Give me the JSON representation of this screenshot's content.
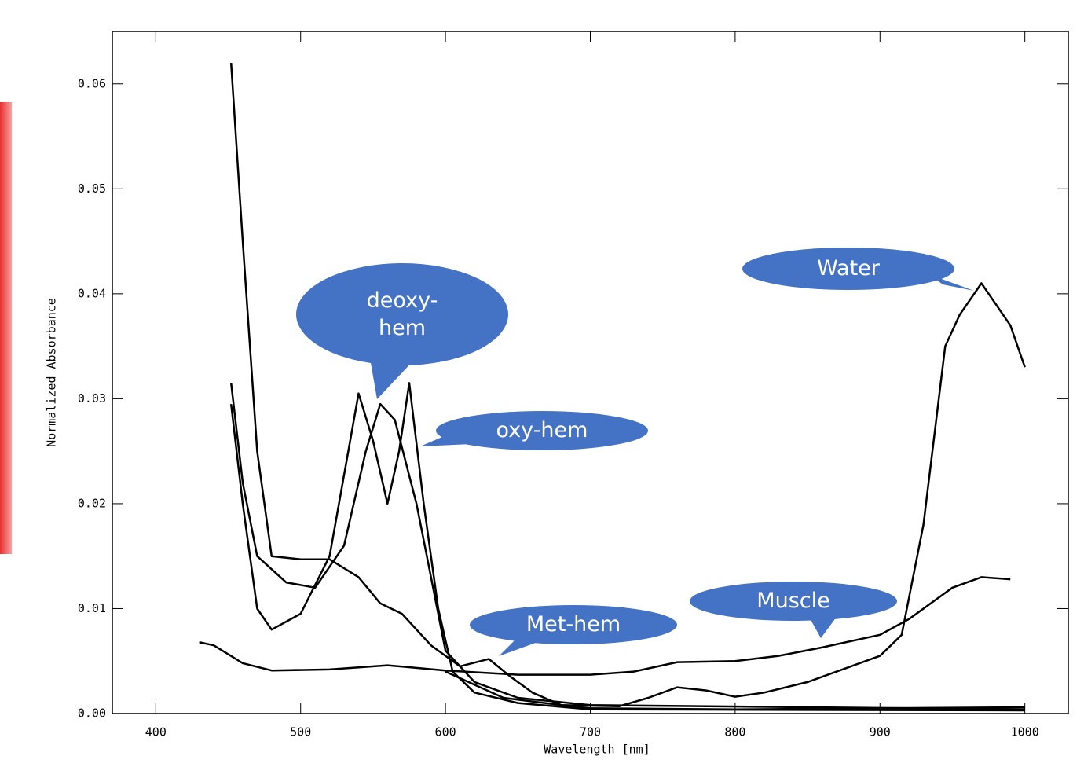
{
  "chart_data": {
    "type": "line",
    "xlabel": "Wavelength [nm]",
    "ylabel": "Normalized Absorbance",
    "xlim": [
      370,
      1030
    ],
    "ylim": [
      0,
      0.065
    ],
    "xticks": [
      400,
      500,
      600,
      700,
      800,
      900,
      1000
    ],
    "yticks": [
      {
        "value": 0,
        "label": "0.00"
      },
      0.01,
      0.02,
      0.03,
      0.04,
      0.05,
      0.06
    ],
    "callout_color": "#4472c4",
    "series": [
      {
        "name": "deoxy-hem",
        "color": "#000000",
        "x": [
          452,
          460,
          470,
          490,
          510,
          530,
          545,
          555,
          565,
          580,
          590,
          600,
          620,
          650,
          700,
          1000
        ],
        "values": [
          0.0315,
          0.022,
          0.015,
          0.0125,
          0.012,
          0.016,
          0.025,
          0.0295,
          0.028,
          0.02,
          0.013,
          0.006,
          0.003,
          0.0015,
          0.0008,
          0.0004
        ]
      },
      {
        "name": "oxy-hem",
        "color": "#000000",
        "x": [
          452,
          460,
          470,
          480,
          500,
          520,
          540,
          550,
          560,
          568,
          575,
          585,
          595,
          605,
          620,
          650,
          700,
          1000
        ],
        "values": [
          0.0295,
          0.02,
          0.01,
          0.008,
          0.0095,
          0.015,
          0.0305,
          0.026,
          0.02,
          0.025,
          0.0315,
          0.02,
          0.01,
          0.004,
          0.002,
          0.001,
          0.0004,
          0.0003
        ]
      },
      {
        "name": "Met-hem",
        "color": "#000000",
        "x": [
          452,
          460,
          470,
          480,
          500,
          520,
          540,
          555,
          570,
          590,
          610,
          630,
          645,
          660,
          680,
          700,
          800,
          900,
          1000
        ],
        "values": [
          0.062,
          0.045,
          0.025,
          0.015,
          0.0147,
          0.0147,
          0.013,
          0.0105,
          0.0095,
          0.0065,
          0.0045,
          0.0052,
          0.0035,
          0.002,
          0.0008,
          0.0005,
          0.0004,
          0.0005,
          0.0006
        ]
      },
      {
        "name": "Muscle",
        "color": "#000000",
        "x": [
          430,
          440,
          460,
          480,
          520,
          560,
          600,
          650,
          700,
          730,
          760,
          800,
          830,
          860,
          900,
          920,
          950,
          970,
          990
        ],
        "values": [
          0.0068,
          0.0065,
          0.0048,
          0.0041,
          0.0042,
          0.0046,
          0.0041,
          0.0037,
          0.0037,
          0.004,
          0.0049,
          0.005,
          0.0055,
          0.0063,
          0.0075,
          0.009,
          0.012,
          0.013,
          0.0128
        ]
      },
      {
        "name": "Water",
        "color": "#000000",
        "x": [
          600,
          640,
          680,
          720,
          740,
          760,
          780,
          800,
          820,
          850,
          880,
          900,
          915,
          930,
          945,
          955,
          970,
          980,
          990,
          1000
        ],
        "values": [
          0.004,
          0.0015,
          0.0008,
          0.0007,
          0.0015,
          0.0025,
          0.0022,
          0.0016,
          0.002,
          0.003,
          0.0045,
          0.0055,
          0.0075,
          0.018,
          0.035,
          0.038,
          0.041,
          0.039,
          0.037,
          0.033
        ]
      }
    ]
  }
}
